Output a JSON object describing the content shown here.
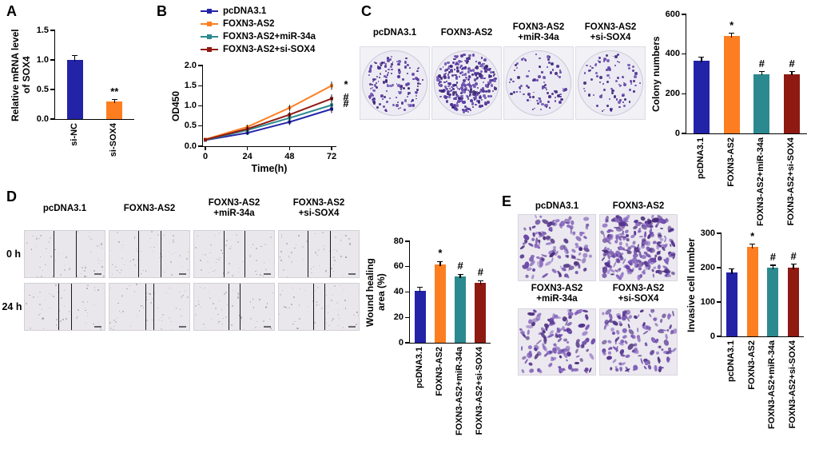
{
  "colors": {
    "blue": "#2323a8",
    "orange": "#fd7e20",
    "teal": "#2b8a8f",
    "darkred": "#8e1a12",
    "colony_dot": "#5a3da0",
    "invasion_cell": "#6d4aa8"
  },
  "panels": {
    "A": {
      "label": "A"
    },
    "B": {
      "label": "B"
    },
    "C": {
      "label": "C",
      "image_labels": [
        "pcDNA3.1",
        "FOXN3-AS2",
        "FOXN3-AS2\n+miR-34a",
        "FOXN3-AS2\n+si-SOX4"
      ],
      "dish_dot_counts": [
        150,
        320,
        95,
        88
      ]
    },
    "D": {
      "label": "D",
      "row_labels": [
        "0 h",
        "24 h"
      ],
      "column_labels": [
        "pcDNA3.1",
        "FOXN3-AS2",
        "FOXN3-AS2\n+miR-34a",
        "FOXN3-AS2\n+si-SOX4"
      ],
      "wound_line_positions": {
        "0h": [
          [
            36,
            64
          ],
          [
            36,
            64
          ],
          [
            37,
            63
          ],
          [
            36,
            64
          ]
        ],
        "24h": [
          [
            42,
            58
          ],
          [
            45,
            55
          ],
          [
            43,
            57
          ],
          [
            43,
            57
          ]
        ]
      }
    },
    "E": {
      "label": "E",
      "image_labels": [
        "pcDNA3.1",
        "FOXN3-AS2",
        "FOXN3-AS2\n+miR-34a",
        "FOXN3-AS2\n+si-SOX4"
      ],
      "cell_counts": [
        120,
        230,
        130,
        130
      ]
    }
  },
  "chart_data": [
    {
      "id": "A",
      "type": "bar",
      "categories": [
        "si-NC",
        "si-SOX4"
      ],
      "values": [
        1.0,
        0.3
      ],
      "errors": [
        0.07,
        0.03
      ],
      "annotations": [
        "",
        "**"
      ],
      "bar_colors": [
        "blue",
        "orange"
      ],
      "ylabel": "Relative mRNA level\nof SOX4",
      "xlabel": "",
      "ylim": [
        0,
        1.5
      ],
      "yticks": [
        0,
        0.5,
        1.0,
        1.5
      ],
      "ytick_labels": [
        "0.0",
        "0.5",
        "1.0",
        "1.5"
      ],
      "grid": false
    },
    {
      "id": "B",
      "type": "line",
      "x": [
        0,
        24,
        48,
        72
      ],
      "xtick_labels": [
        "0",
        "24",
        "48",
        "72"
      ],
      "xlabel": "Time(h)",
      "ylabel": "OD450",
      "ylim": [
        0,
        2.0
      ],
      "yticks": [
        0,
        0.5,
        1.0,
        1.5,
        2.0
      ],
      "ytick_labels": [
        "0.0",
        "0.5",
        "1.0",
        "1.5",
        "2.0"
      ],
      "legend_position": "top",
      "grid": false,
      "series": [
        {
          "name": "pcDNA3.1",
          "color": "blue",
          "values": [
            0.15,
            0.33,
            0.6,
            0.92
          ],
          "annotation": ""
        },
        {
          "name": "FOXN3-AS2",
          "color": "orange",
          "values": [
            0.17,
            0.48,
            0.95,
            1.5
          ],
          "annotation": "*"
        },
        {
          "name": "FOXN3-AS2+miR-34a",
          "color": "teal",
          "values": [
            0.15,
            0.4,
            0.7,
            1.02
          ],
          "annotation": "#"
        },
        {
          "name": "FOXN3-AS2+si-SOX4",
          "color": "darkred",
          "values": [
            0.16,
            0.43,
            0.78,
            1.18
          ],
          "annotation": "#"
        }
      ]
    },
    {
      "id": "C",
      "type": "bar",
      "categories": [
        "pcDNA3.1",
        "FOXN3-AS2",
        "FOXN3-AS2+miR-34a",
        "FOXN3-AS2+si-SOX4"
      ],
      "values": [
        365,
        490,
        300,
        300
      ],
      "errors": [
        20,
        15,
        12,
        12
      ],
      "annotations": [
        "",
        "*",
        "#",
        "#"
      ],
      "bar_colors": [
        "blue",
        "orange",
        "teal",
        "darkred"
      ],
      "ylabel": "Colony numbers",
      "xlabel": "",
      "ylim": [
        0,
        600
      ],
      "yticks": [
        0,
        200,
        400,
        600
      ],
      "ytick_labels": [
        "0",
        "200",
        "400",
        "600"
      ],
      "grid": false
    },
    {
      "id": "D",
      "type": "bar",
      "categories": [
        "pcDNA3.1",
        "FOXN3-AS2",
        "FOXN3-AS2+miR-34a",
        "FOXN3-AS2+si-SOX4"
      ],
      "values": [
        41,
        62,
        52,
        47
      ],
      "errors": [
        3,
        2,
        2,
        2
      ],
      "annotations": [
        "",
        "*",
        "#",
        "#"
      ],
      "bar_colors": [
        "blue",
        "orange",
        "teal",
        "darkred"
      ],
      "ylabel": "Wound healing\narea (%)",
      "xlabel": "",
      "ylim": [
        0,
        80
      ],
      "yticks": [
        0,
        20,
        40,
        60,
        80
      ],
      "ytick_labels": [
        "0",
        "20",
        "40",
        "60",
        "80"
      ],
      "grid": false
    },
    {
      "id": "E",
      "type": "bar",
      "categories": [
        "pcDNA3.1",
        "FOXN3-AS2",
        "FOXN3-AS2+miR-34a",
        "FOXN3-AS2+si-SOX4"
      ],
      "values": [
        185,
        260,
        200,
        200
      ],
      "errors": [
        12,
        8,
        7,
        10
      ],
      "annotations": [
        "",
        "*",
        "#",
        "#"
      ],
      "bar_colors": [
        "blue",
        "orange",
        "teal",
        "darkred"
      ],
      "ylabel": "Invasive cell number",
      "xlabel": "",
      "ylim": [
        0,
        300
      ],
      "yticks": [
        0,
        100,
        200,
        300
      ],
      "ytick_labels": [
        "0",
        "100",
        "200",
        "300"
      ],
      "grid": false
    }
  ]
}
